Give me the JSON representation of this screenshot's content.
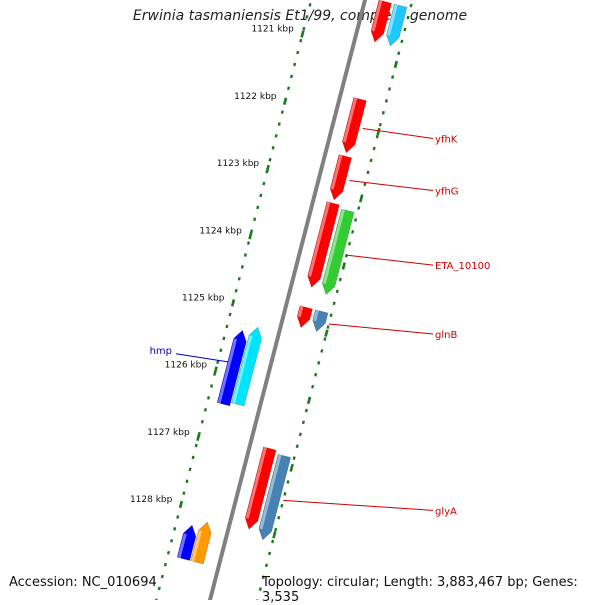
{
  "title": "Erwinia tasmaniensis Et1/99, complete genome",
  "footer": {
    "accession": "Accession: NC_010694",
    "summary": "Topology: circular; Length: 3,883,467 bp; Genes: 3,535"
  },
  "colors": {
    "backbone": "#808080",
    "tick": "#1a7a1a",
    "label_red": "#cc0000",
    "label_blue": "#0000bb",
    "gene_red": "#ff0000",
    "gene_cyan": "#00e5ff",
    "gene_skyblue": "#1ec8ff",
    "gene_blue": "#0000ff",
    "gene_green": "#33cc33",
    "gene_steelblue": "#4682b4",
    "gene_orange": "#ff9900"
  },
  "ruler": [
    {
      "kbp": 1121,
      "label": "1121 kbp"
    },
    {
      "kbp": 1122,
      "label": "1122 kbp"
    },
    {
      "kbp": 1123,
      "label": "1123 kbp"
    },
    {
      "kbp": 1124,
      "label": "1124 kbp"
    },
    {
      "kbp": 1125,
      "label": "1125 kbp"
    },
    {
      "kbp": 1126,
      "label": "1126 kbp"
    },
    {
      "kbp": 1127,
      "label": "1127 kbp"
    },
    {
      "kbp": 1128,
      "label": "1128 kbp"
    }
  ],
  "genes": [
    {
      "name": "",
      "strand": "+",
      "track": 1,
      "start": 1120.3,
      "end": 1120.9,
      "color": "gene_red"
    },
    {
      "name": "",
      "strand": "+",
      "track": 2,
      "start": 1120.3,
      "end": 1120.9,
      "color": "gene_skyblue"
    },
    {
      "name": "yfhK",
      "strand": "+",
      "track": 1,
      "start": 1121.75,
      "end": 1122.55,
      "color": "gene_red",
      "label_color": "label_red"
    },
    {
      "name": "yfhG",
      "strand": "+",
      "track": 1,
      "start": 1122.6,
      "end": 1123.25,
      "color": "gene_red",
      "label_color": "label_red"
    },
    {
      "name": "",
      "strand": "+",
      "track": 1,
      "start": 1123.3,
      "end": 1124.55,
      "color": "gene_red"
    },
    {
      "name": "ETA_10100",
      "strand": "+",
      "track": 2,
      "start": 1123.35,
      "end": 1124.6,
      "color": "gene_green",
      "label_color": "label_red"
    },
    {
      "name": "",
      "strand": "+",
      "track": 1,
      "start": 1124.85,
      "end": 1125.15,
      "color": "gene_red"
    },
    {
      "name": "glnB",
      "strand": "+",
      "track": 2,
      "start": 1124.85,
      "end": 1125.15,
      "color": "gene_steelblue",
      "label_color": "label_red"
    },
    {
      "name": "hmp",
      "strand": "-",
      "track": -1,
      "start": 1125.3,
      "end": 1126.45,
      "color": "gene_cyan",
      "label_color": "label_blue"
    },
    {
      "name": "",
      "strand": "-",
      "track": -2,
      "start": 1125.4,
      "end": 1126.5,
      "color": "gene_blue"
    },
    {
      "name": "",
      "strand": "+",
      "track": 1,
      "start": 1126.95,
      "end": 1128.15,
      "color": "gene_red"
    },
    {
      "name": "glyA",
      "strand": "+",
      "track": 2,
      "start": 1127.0,
      "end": 1128.25,
      "color": "gene_steelblue",
      "label_color": "label_red"
    },
    {
      "name": "",
      "strand": "-",
      "track": -1,
      "start": 1128.2,
      "end": 1128.8,
      "color": "gene_orange"
    },
    {
      "name": "",
      "strand": "-",
      "track": -2,
      "start": 1128.3,
      "end": 1128.8,
      "color": "gene_blue"
    }
  ]
}
